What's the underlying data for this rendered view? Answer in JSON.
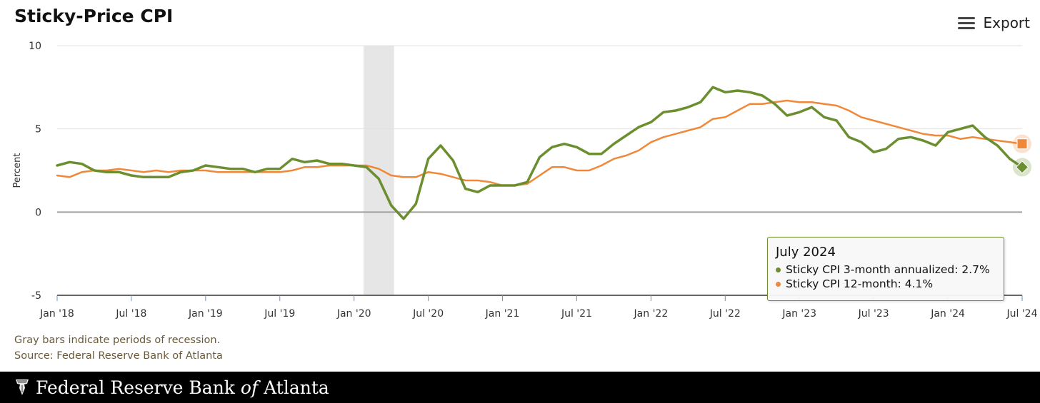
{
  "page": {
    "title": "Sticky-Price CPI",
    "export_label": "Export",
    "notes": [
      "Gray bars indicate periods of recession.",
      "Source: Federal Reserve Bank of Atlanta"
    ],
    "footer": {
      "brand_prefix": "Federal Reserve Bank ",
      "brand_of": "of",
      "brand_suffix": " Atlanta"
    }
  },
  "tooltip": {
    "title": "July 2024",
    "rows": [
      {
        "text": "Sticky CPI 3-month annualized: 2.7%",
        "color": "#6b8e2f"
      },
      {
        "text": "Sticky CPI 12-month: 4.1%",
        "color": "#f0883a"
      }
    ]
  },
  "chart_data": {
    "type": "line",
    "title": "Sticky-Price CPI",
    "ylabel": "Percent",
    "ylim": [
      -5,
      10
    ],
    "yticks": [
      10,
      5,
      0,
      -5
    ],
    "x_start": "2018-01",
    "xticks": [
      {
        "i": 0,
        "label": "Jan '18"
      },
      {
        "i": 6,
        "label": "Jul '18"
      },
      {
        "i": 12,
        "label": "Jan '19"
      },
      {
        "i": 18,
        "label": "Jul '19"
      },
      {
        "i": 24,
        "label": "Jan '20"
      },
      {
        "i": 30,
        "label": "Jul '20"
      },
      {
        "i": 36,
        "label": "Jan '21"
      },
      {
        "i": 42,
        "label": "Jul '21"
      },
      {
        "i": 48,
        "label": "Jan '22"
      },
      {
        "i": 54,
        "label": "Jul '22"
      },
      {
        "i": 60,
        "label": "Jan '23"
      },
      {
        "i": 66,
        "label": "Jul '23"
      },
      {
        "i": 72,
        "label": "Jan '24"
      },
      {
        "i": 78,
        "label": "Jul '24"
      }
    ],
    "recession": {
      "start": "2020-02",
      "end": "2020-04"
    },
    "grid": true,
    "series": [
      {
        "name": "Sticky CPI 3-month annualized",
        "color": "#6b8e2f",
        "values": [
          2.8,
          3.0,
          2.9,
          2.5,
          2.4,
          2.4,
          2.2,
          2.1,
          2.1,
          2.1,
          2.4,
          2.5,
          2.8,
          2.7,
          2.6,
          2.6,
          2.4,
          2.6,
          2.6,
          3.2,
          3.0,
          3.1,
          2.9,
          2.9,
          2.8,
          2.7,
          2.0,
          0.4,
          -0.4,
          0.5,
          3.2,
          4.0,
          3.1,
          1.4,
          1.2,
          1.6,
          1.6,
          1.6,
          1.8,
          3.3,
          3.9,
          4.1,
          3.9,
          3.5,
          3.5,
          4.1,
          4.6,
          5.1,
          5.4,
          6.0,
          6.1,
          6.3,
          6.6,
          7.5,
          7.2,
          7.3,
          7.2,
          7.0,
          6.5,
          5.8,
          6.0,
          6.3,
          5.7,
          5.5,
          4.5,
          4.2,
          3.6,
          3.8,
          4.4,
          4.5,
          4.3,
          4.0,
          4.8,
          5.0,
          5.2,
          4.5,
          4.0,
          3.2,
          2.7
        ]
      },
      {
        "name": "Sticky CPI 12-month",
        "color": "#f0883a",
        "values": [
          2.2,
          2.1,
          2.4,
          2.5,
          2.5,
          2.6,
          2.5,
          2.4,
          2.5,
          2.4,
          2.5,
          2.5,
          2.5,
          2.4,
          2.4,
          2.4,
          2.4,
          2.4,
          2.4,
          2.5,
          2.7,
          2.7,
          2.8,
          2.8,
          2.8,
          2.8,
          2.6,
          2.2,
          2.1,
          2.1,
          2.4,
          2.3,
          2.1,
          1.9,
          1.9,
          1.8,
          1.6,
          1.6,
          1.7,
          2.2,
          2.7,
          2.7,
          2.5,
          2.5,
          2.8,
          3.2,
          3.4,
          3.7,
          4.2,
          4.5,
          4.7,
          4.9,
          5.1,
          5.6,
          5.7,
          6.1,
          6.5,
          6.5,
          6.6,
          6.7,
          6.6,
          6.6,
          6.5,
          6.4,
          6.1,
          5.7,
          5.5,
          5.3,
          5.1,
          4.9,
          4.7,
          4.6,
          4.6,
          4.4,
          4.5,
          4.4,
          4.3,
          4.2,
          4.1
        ]
      }
    ]
  }
}
